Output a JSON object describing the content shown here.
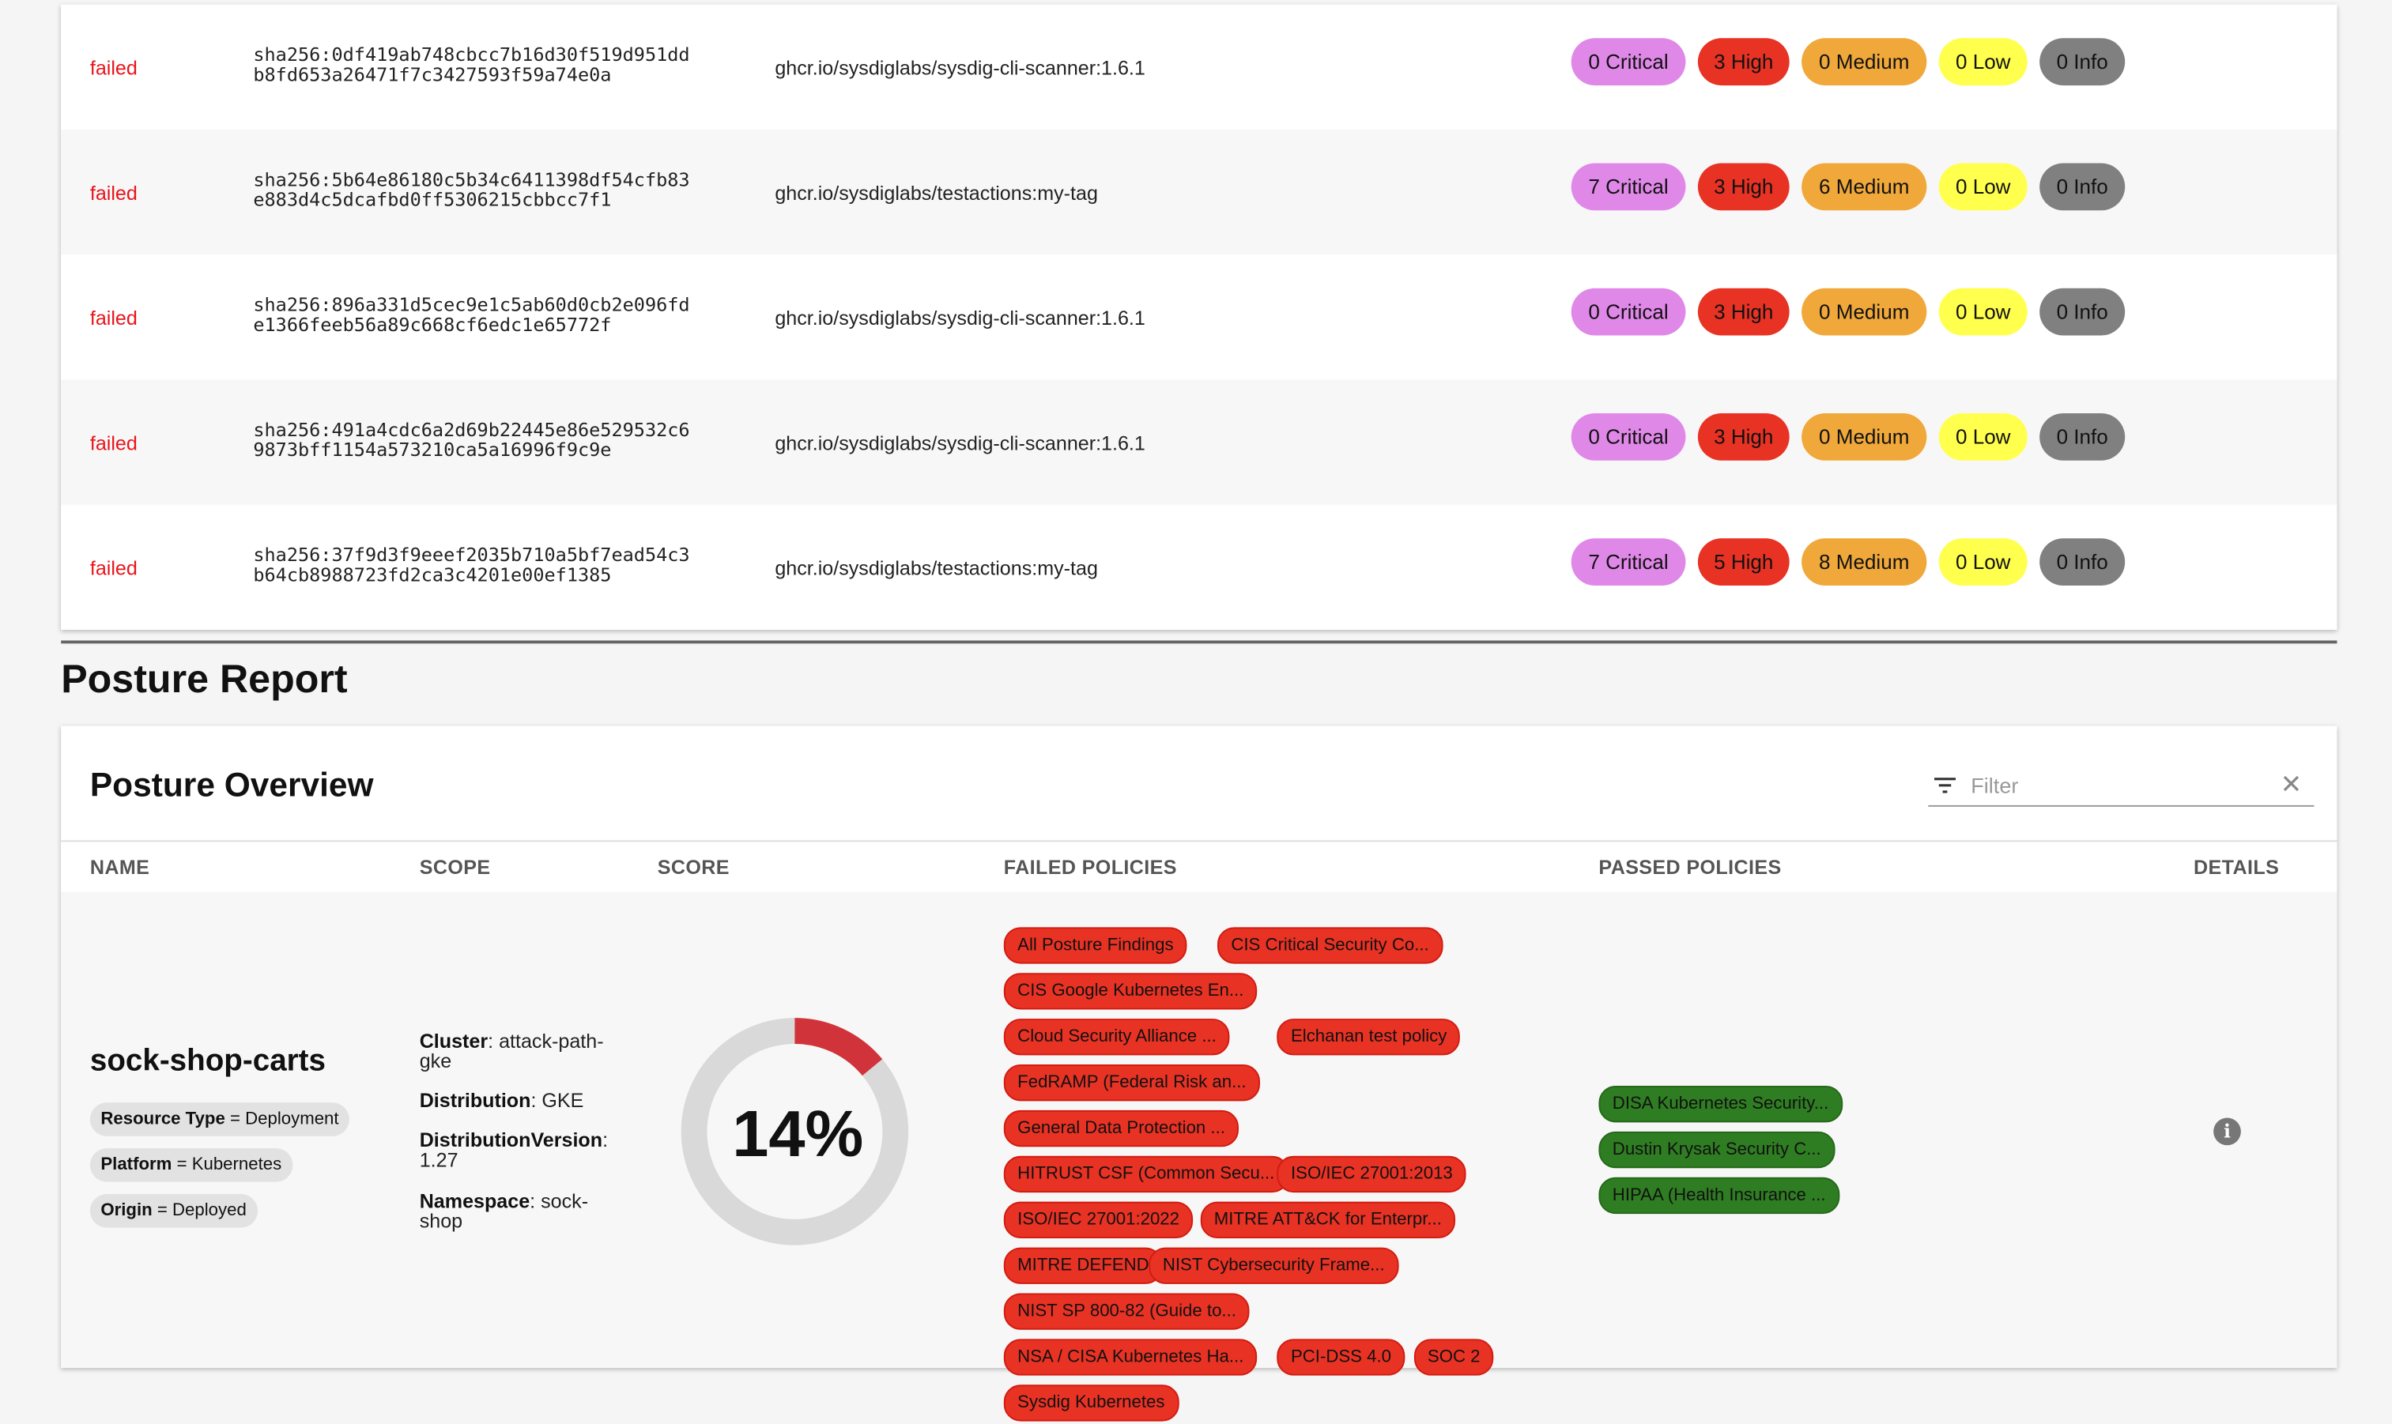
{
  "scans": {
    "severity_colors": {
      "critical": "#e088e8",
      "high": "#e83224",
      "medium": "#f0a83a",
      "low": "#ffff4d",
      "info": "#808080"
    },
    "rows": [
      {
        "status": "failed",
        "digest": [
          "sha256:0df419ab748cbcc7b16d30f519d951dd",
          "b8fd653a26471f7c3427593f59a74e0a"
        ],
        "image": "ghcr.io/sysdiglabs/sysdig-cli-scanner:1.6.1",
        "critical": "0 Critical",
        "high": "3 High",
        "medium": "0 Medium",
        "low": "0 Low",
        "info": "0 Info"
      },
      {
        "status": "failed",
        "digest": [
          "sha256:5b64e86180c5b34c6411398df54cfb83",
          "e883d4c5dcafbd0ff5306215cbbcc7f1"
        ],
        "image": "ghcr.io/sysdiglabs/testactions:my-tag",
        "critical": "7 Critical",
        "high": "3 High",
        "medium": "6 Medium",
        "low": "0 Low",
        "info": "0 Info"
      },
      {
        "status": "failed",
        "digest": [
          "sha256:896a331d5cec9e1c5ab60d0cb2e096fd",
          "e1366feeb56a89c668cf6edc1e65772f"
        ],
        "image": "ghcr.io/sysdiglabs/sysdig-cli-scanner:1.6.1",
        "critical": "0 Critical",
        "high": "3 High",
        "medium": "0 Medium",
        "low": "0 Low",
        "info": "0 Info"
      },
      {
        "status": "failed",
        "digest": [
          "sha256:491a4cdc6a2d69b22445e86e529532c6",
          "9873bff1154a573210ca5a16996f9c9e"
        ],
        "image": "ghcr.io/sysdiglabs/sysdig-cli-scanner:1.6.1",
        "critical": "0 Critical",
        "high": "3 High",
        "medium": "0 Medium",
        "low": "0 Low",
        "info": "0 Info"
      },
      {
        "status": "failed",
        "digest": [
          "sha256:37f9d3f9eeef2035b710a5bf7ead54c3",
          "b64cb8988723fd2ca3c4201e00ef1385"
        ],
        "image": "ghcr.io/sysdiglabs/testactions:my-tag",
        "critical": "7 Critical",
        "high": "5 High",
        "medium": "8 Medium",
        "low": "0 Low",
        "info": "0 Info"
      }
    ]
  },
  "posture": {
    "section_title": "Posture Report",
    "card_title": "Posture Overview",
    "filter_placeholder": "Filter",
    "columns": {
      "name": "NAME",
      "scope": "SCOPE",
      "score": "SCORE",
      "failed": "FAILED POLICIES",
      "passed": "PASSED POLICIES",
      "details": "DETAILS"
    },
    "row": {
      "name": "sock-shop-carts",
      "labels": [
        {
          "key": "Resource Type",
          "value": "Deployment"
        },
        {
          "key": "Platform",
          "value": "Kubernetes"
        },
        {
          "key": "Origin",
          "value": "Deployed"
        }
      ],
      "scope": [
        {
          "key": "Cluster",
          "value": "attack-path-gke"
        },
        {
          "key": "Distribution",
          "value": "GKE"
        },
        {
          "key": "DistributionVersion",
          "value": "1.27"
        },
        {
          "key": "Namespace",
          "value": "sock-shop"
        }
      ],
      "score": 14,
      "score_label": "14%",
      "score_color": "#d0343a",
      "failed_policies": [
        "All Posture Findings",
        "CIS Critical Security Co...",
        "CIS Google Kubernetes En...",
        "Cloud Security Alliance ...",
        "Elchanan test policy",
        "FedRAMP (Federal Risk an...",
        "General Data Protection ...",
        "HITRUST CSF (Common Secu...",
        "ISO/IEC 27001:2013",
        "ISO/IEC 27001:2022",
        "MITRE ATT&CK for Enterpr...",
        "MITRE DEFEND",
        "NIST Cybersecurity Frame...",
        "NIST SP 800-82 (Guide to...",
        "NSA / CISA Kubernetes Ha...",
        "PCI-DSS 4.0",
        "SOC 2",
        "Sysdig Kubernetes"
      ],
      "passed_policies": [
        "DISA Kubernetes Security...",
        "Dustin Krysak Security C...",
        "HIPAA (Health Insurance ..."
      ],
      "details_icon": "info-icon"
    }
  }
}
